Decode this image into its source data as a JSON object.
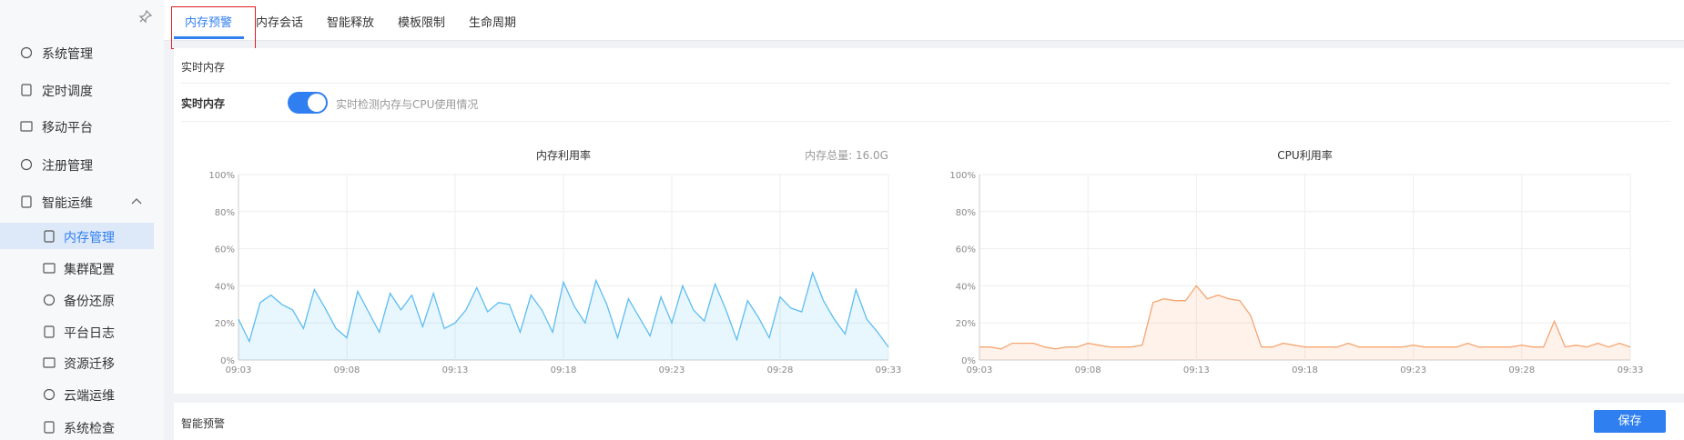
{
  "sidebar": {
    "menu": [
      "系统管理",
      "定时调度",
      "移动平台",
      "注册管理",
      "智能运维"
    ],
    "submenu": [
      "内存管理",
      "集群配置",
      "备份还原",
      "平台日志",
      "资源迁移",
      "云端运维",
      "系统检查"
    ]
  },
  "tabs": [
    "内存预警",
    "内存会话",
    "智能释放",
    "模板限制",
    "生命周期"
  ],
  "section": {
    "title": "实时内存",
    "field_label": "实时内存",
    "toggle_hint": "实时检测内存与CPU使用情况"
  },
  "footer": {
    "title": "智能预警",
    "save_button": "保存"
  },
  "chart_data": [
    {
      "type": "area",
      "title": "内存利用率",
      "annotation": "内存总量: 16.0G",
      "color": "#5cbdf0",
      "grid": true,
      "categories": [
        "09:03",
        null,
        null,
        null,
        null,
        null,
        null,
        null,
        null,
        null,
        "09:08",
        null,
        null,
        null,
        null,
        null,
        null,
        null,
        null,
        null,
        "09:13",
        null,
        null,
        null,
        null,
        null,
        null,
        null,
        null,
        null,
        "09:18",
        null,
        null,
        null,
        null,
        null,
        null,
        null,
        null,
        null,
        "09:23",
        null,
        null,
        null,
        null,
        null,
        null,
        null,
        null,
        null,
        "09:28",
        null,
        null,
        null,
        null,
        null,
        null,
        null,
        null,
        null,
        "09:33"
      ],
      "values": [
        22,
        10,
        31,
        35,
        30,
        27,
        17,
        38,
        28,
        17,
        12,
        37,
        26,
        15,
        36,
        27,
        35,
        18,
        36,
        17,
        20,
        27,
        39,
        26,
        31,
        30,
        15,
        35,
        27,
        15,
        42,
        29,
        20,
        43,
        30,
        12,
        33,
        23,
        13,
        34,
        20,
        40,
        27,
        21,
        41,
        27,
        11,
        32,
        23,
        12,
        34,
        28,
        26,
        47,
        32,
        22,
        14,
        38,
        22,
        15,
        7
      ],
      "ylim": [
        0,
        100
      ],
      "yticks": [
        {
          "value": 0,
          "label": "0%"
        },
        {
          "value": 20,
          "label": "20%"
        },
        {
          "value": 40,
          "label": "40%"
        },
        {
          "value": 60,
          "label": "60%"
        },
        {
          "value": 80,
          "label": "80%"
        },
        {
          "value": 100,
          "label": "100%"
        }
      ]
    },
    {
      "type": "area",
      "title": "CPU利用率",
      "color": "#f5a671",
      "grid": true,
      "categories": [
        "09:03",
        null,
        null,
        null,
        null,
        null,
        null,
        null,
        null,
        null,
        "09:08",
        null,
        null,
        null,
        null,
        null,
        null,
        null,
        null,
        null,
        "09:13",
        null,
        null,
        null,
        null,
        null,
        null,
        null,
        null,
        null,
        "09:18",
        null,
        null,
        null,
        null,
        null,
        null,
        null,
        null,
        null,
        "09:23",
        null,
        null,
        null,
        null,
        null,
        null,
        null,
        null,
        null,
        "09:28",
        null,
        null,
        null,
        null,
        null,
        null,
        null,
        null,
        null,
        "09:33"
      ],
      "values": [
        7,
        7,
        6,
        9,
        9,
        9,
        7,
        6,
        7,
        7,
        9,
        8,
        7,
        7,
        7,
        8,
        31,
        33,
        32,
        32,
        40,
        33,
        35,
        33,
        32,
        24,
        7,
        7,
        9,
        8,
        7,
        7,
        7,
        7,
        9,
        7,
        7,
        7,
        7,
        7,
        8,
        7,
        7,
        7,
        7,
        9,
        7,
        7,
        7,
        7,
        8,
        7,
        7,
        21,
        7,
        8,
        7,
        9,
        7,
        9,
        7
      ],
      "ylim": [
        0,
        100
      ],
      "yticks": [
        {
          "value": 0,
          "label": "0%"
        },
        {
          "value": 20,
          "label": "20%"
        },
        {
          "value": 40,
          "label": "40%"
        },
        {
          "value": 60,
          "label": "60%"
        },
        {
          "value": 80,
          "label": "80%"
        },
        {
          "value": 100,
          "label": "100%"
        }
      ]
    }
  ]
}
